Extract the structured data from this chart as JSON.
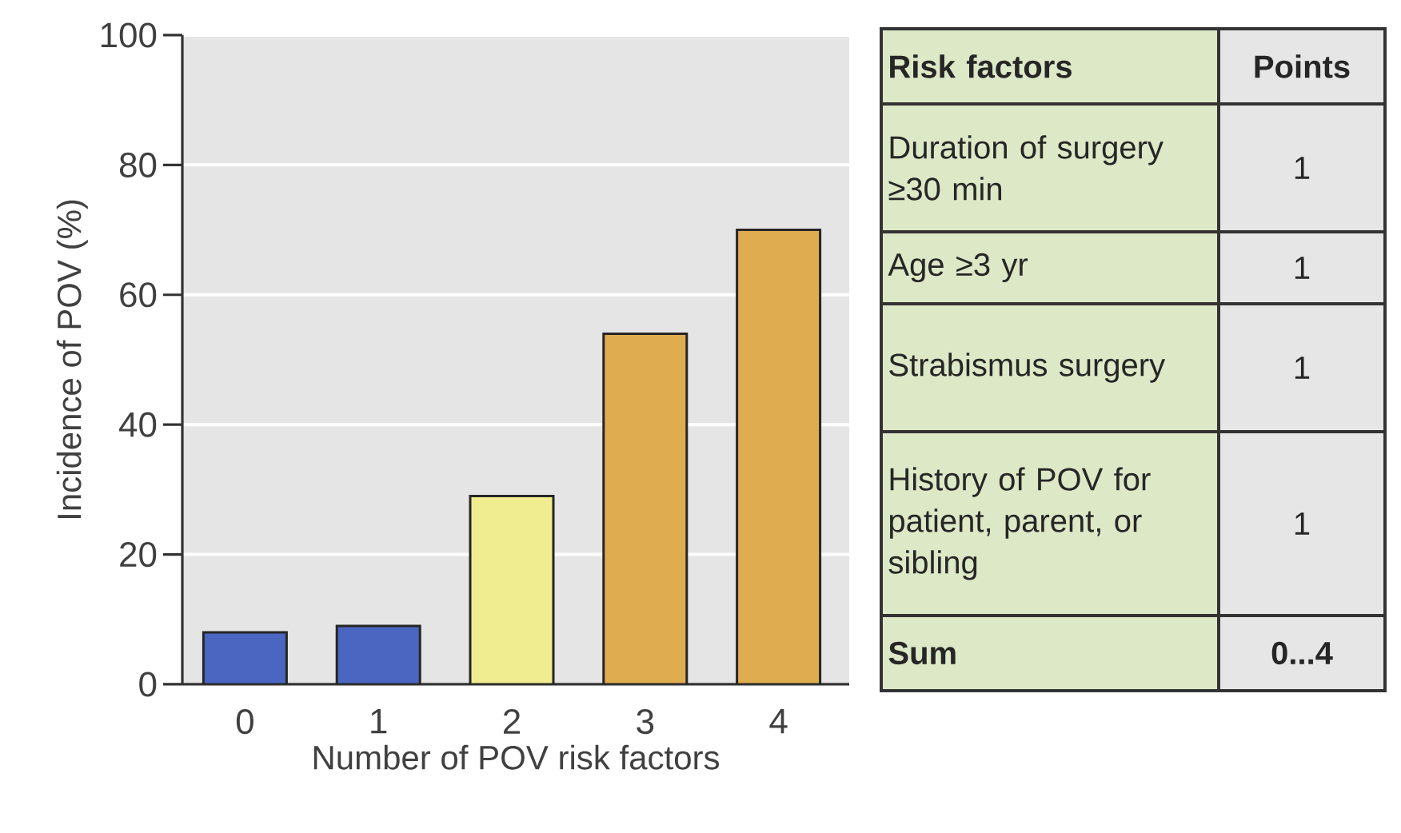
{
  "chart_data": [
    {
      "type": "bar",
      "xlabel": "Number of POV risk factors",
      "ylabel": "Incidence of POV (%)",
      "categories": [
        "0",
        "1",
        "2",
        "3",
        "4"
      ],
      "values": [
        8,
        9,
        29,
        54,
        70
      ],
      "colors": [
        "#4a66c0",
        "#4a66c0",
        "#f0ec90",
        "#e0ac50",
        "#e0ac50"
      ],
      "ylim": [
        0,
        100
      ],
      "yticks": [
        0,
        20,
        40,
        60,
        80,
        100
      ],
      "grid": "y"
    },
    {
      "type": "other",
      "annotations": [
        "Risk factors",
        "Points",
        "Duration of surgery ≥30 min",
        "1",
        "Age ≥3 yr",
        "1",
        "Strabismus surgery",
        "1",
        "History of POV for patient, parent, or sibling",
        "1",
        "Sum",
        "0...4"
      ]
    }
  ]
}
